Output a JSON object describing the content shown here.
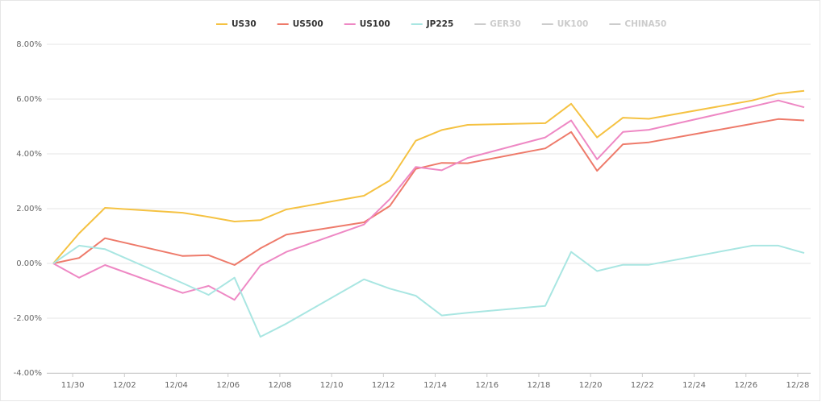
{
  "chart_data": {
    "type": "line",
    "x": [
      "11/29",
      "11/30",
      "12/01",
      "12/04",
      "12/05",
      "12/06",
      "12/07",
      "12/08",
      "12/11",
      "12/12",
      "12/13",
      "12/14",
      "12/15",
      "12/18",
      "12/19",
      "12/20",
      "12/21",
      "12/22",
      "12/26",
      "12/27",
      "12/28"
    ],
    "series": [
      {
        "name": "US30",
        "color": "#f5c242",
        "values": [
          0,
          1.1,
          2.03,
          1.85,
          1.7,
          1.53,
          1.58,
          1.97,
          2.47,
          3.03,
          4.48,
          4.87,
          5.06,
          5.12,
          5.83,
          4.6,
          5.32,
          5.28,
          5.95,
          6.2,
          6.3
        ]
      },
      {
        "name": "US500",
        "color": "#ee7a6a",
        "values": [
          0,
          0.2,
          0.92,
          0.27,
          0.3,
          -0.06,
          0.55,
          1.05,
          1.5,
          2.1,
          3.45,
          3.67,
          3.66,
          4.2,
          4.8,
          3.38,
          4.35,
          4.42,
          5.1,
          5.27,
          5.22
        ]
      },
      {
        "name": "US100",
        "color": "#ee88c4",
        "values": [
          0,
          -0.52,
          -0.06,
          -1.08,
          -0.82,
          -1.33,
          -0.08,
          0.42,
          1.42,
          2.35,
          3.52,
          3.4,
          3.85,
          4.6,
          5.22,
          3.8,
          4.8,
          4.88,
          5.73,
          5.95,
          5.7
        ]
      },
      {
        "name": "JP225",
        "color": "#a9e6e2",
        "values": [
          0,
          0.65,
          0.52,
          -0.72,
          -1.15,
          -0.52,
          -2.68,
          -2.2,
          -0.58,
          -0.92,
          -1.18,
          -1.9,
          -1.8,
          -1.55,
          0.42,
          -0.28,
          -0.05,
          -0.05,
          0.65,
          0.65,
          0.38
        ]
      }
    ],
    "hidden_series": [
      {
        "name": "GER30",
        "color": "#cccccc"
      },
      {
        "name": "UK100",
        "color": "#cccccc"
      },
      {
        "name": "CHINA50",
        "color": "#cccccc"
      }
    ],
    "xlim": [
      "11/29",
      "12/28"
    ],
    "xticks": [
      "11/30",
      "12/02",
      "12/04",
      "12/06",
      "12/08",
      "12/10",
      "12/12",
      "12/14",
      "12/16",
      "12/18",
      "12/20",
      "12/22",
      "12/24",
      "12/26",
      "12/28"
    ],
    "ylim": [
      -4,
      8
    ],
    "yticks": [
      {
        "value": -4,
        "label": "-4.00%"
      },
      {
        "value": -2,
        "label": "-2.00%"
      },
      {
        "value": 0,
        "label": "0.00%"
      },
      {
        "value": 2,
        "label": "2.00%"
      },
      {
        "value": 4,
        "label": "4.00%"
      },
      {
        "value": 6,
        "label": "6.00%"
      },
      {
        "value": 8,
        "label": "8.00%"
      }
    ],
    "grid": true,
    "legend": "top"
  }
}
